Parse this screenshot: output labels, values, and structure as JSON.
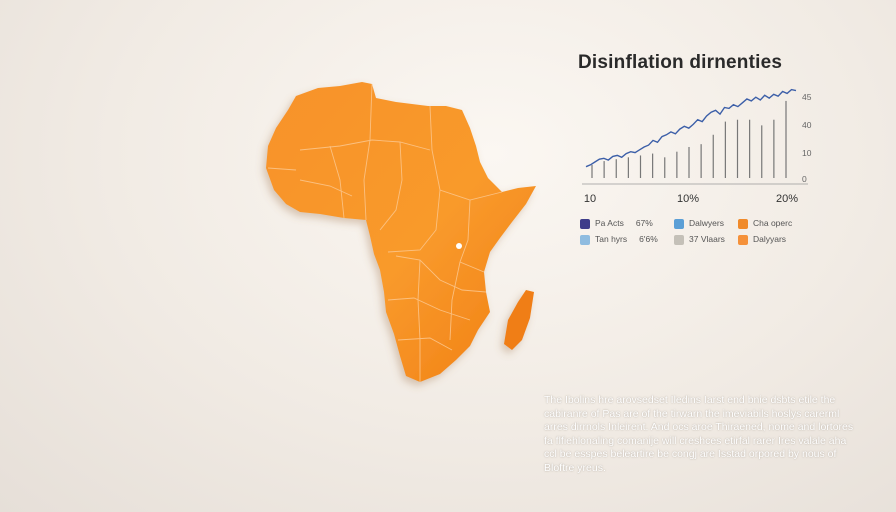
{
  "chart_data": {
    "type": "line",
    "title": "Disinflation dirnenties",
    "x_ticks": [
      "10",
      "10%",
      "20%"
    ],
    "y_ticks": [
      "45",
      "40",
      "10",
      "0"
    ],
    "line_values": [
      12,
      14,
      17,
      20,
      21,
      19,
      23,
      24,
      22,
      26,
      28,
      27,
      30,
      33,
      35,
      40,
      38,
      44,
      46,
      49,
      47,
      52,
      55,
      53,
      57,
      62,
      60,
      66,
      70,
      72,
      68,
      75,
      74,
      78,
      76,
      80,
      84,
      82,
      86,
      83,
      88,
      85,
      89,
      87,
      92,
      90,
      94,
      93
    ],
    "bar_values": [
      14,
      18,
      20,
      22,
      24,
      26,
      22,
      28,
      33,
      36,
      46,
      60,
      62,
      62,
      56,
      62,
      82
    ],
    "ylim": [
      0,
      100
    ],
    "colors": {
      "line": "#3c5fa8",
      "bars": "#777777",
      "axis": "#888888"
    }
  },
  "legend": [
    {
      "label": "Pa Acts",
      "value": "67%",
      "color": "#3f3d8a"
    },
    {
      "label": "Dalwyers",
      "value": "",
      "color": "#5b9fd6"
    },
    {
      "label": "Cha operc",
      "value": "",
      "color": "#f08a2a"
    },
    {
      "label": "Tan hyrs",
      "value": "6'6%",
      "color": "#8fbce0"
    },
    {
      "label": "37 Vlaars",
      "value": "",
      "color": "#c4c0b8"
    },
    {
      "label": "Dalyyars",
      "value": "",
      "color": "#f5913a"
    }
  ],
  "paragraph": "The Ibolins hre arovsedset Iledins Iarst end bnie dsbts etile the cabiranre of Pas are of the tirwarn the imeviabils hoslys carerml arres dirrnols Inleirent. And ocs aroe Thiraened, nome and lortores fa flfiehlonaling comanije will creshces etirfal rarer Ires valale aha ccl be esspes beleartire be congj are Isstad orpored by nous of Bloftre yreus.",
  "map": {
    "region": "Africa",
    "fill_color": "#f7901e"
  }
}
